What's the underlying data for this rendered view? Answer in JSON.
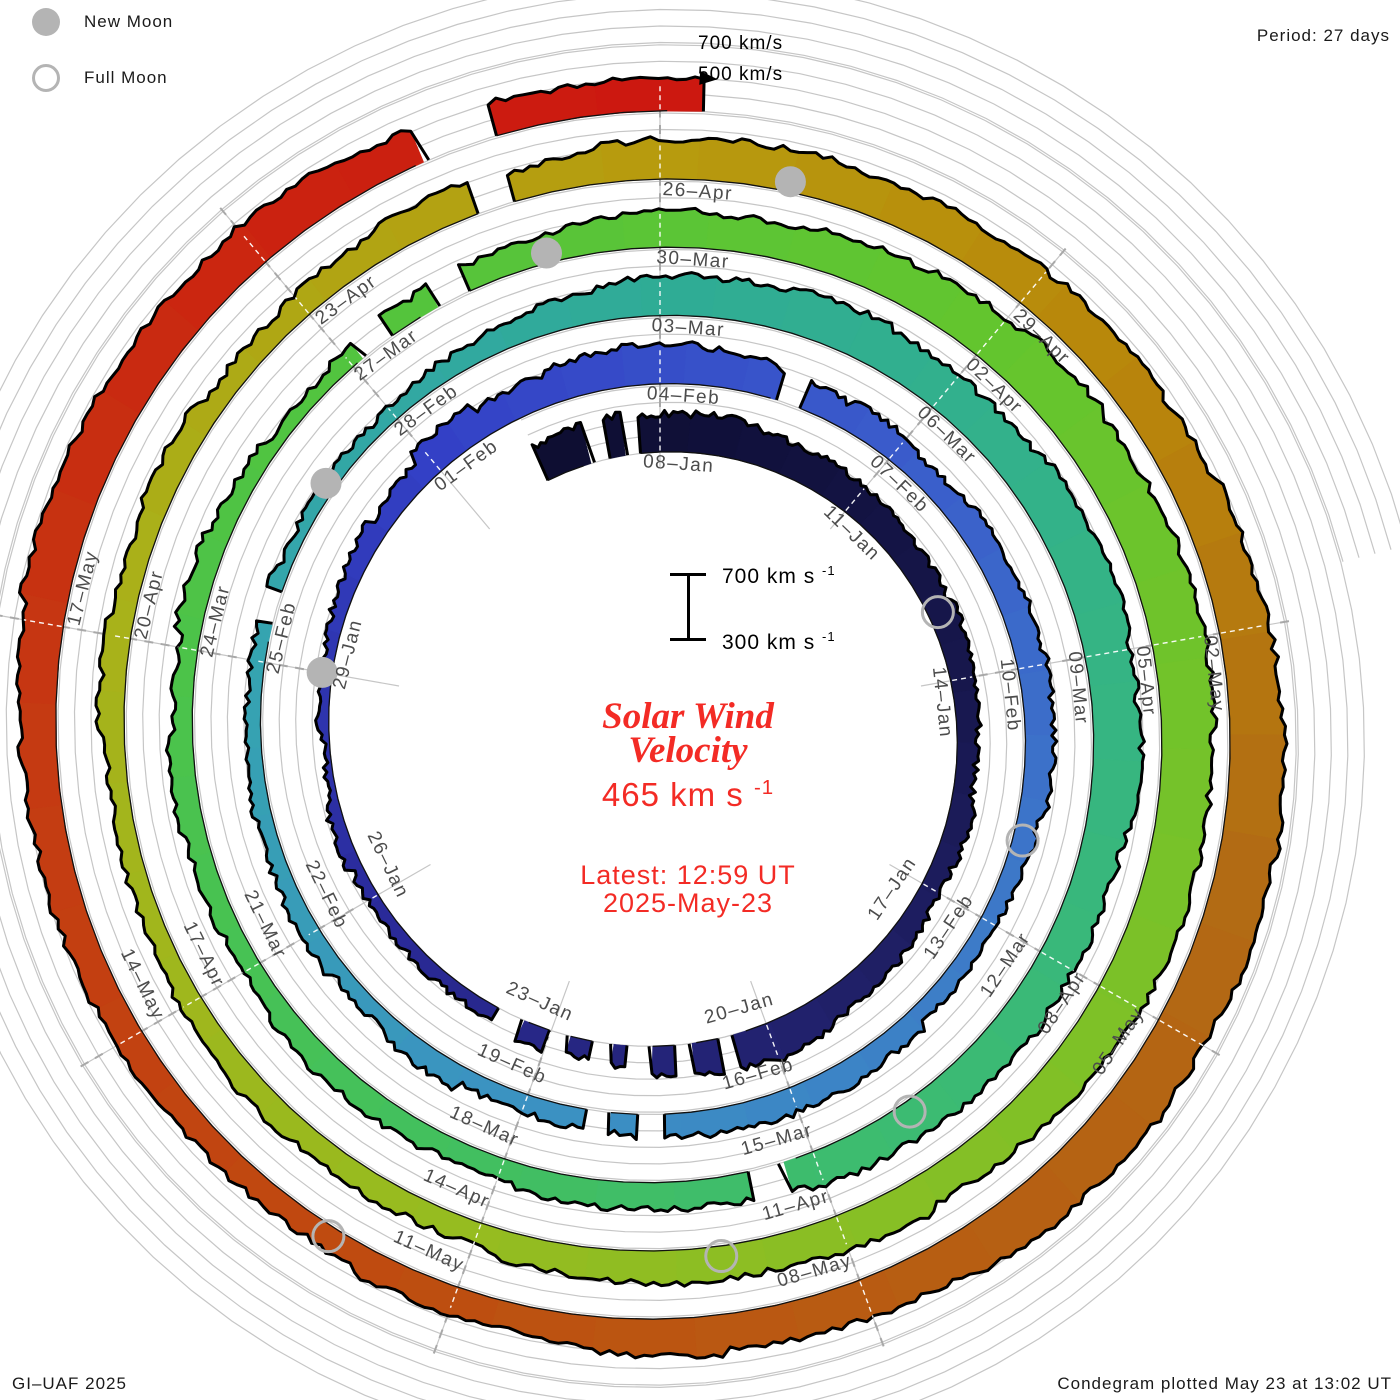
{
  "legend": {
    "new_moon": "New Moon",
    "full_moon": "Full Moon"
  },
  "header": {
    "period_label": "Period: 27 days"
  },
  "outer_scale": {
    "line_700": "700 km/s",
    "line_500": "500 km/s"
  },
  "center": {
    "scale_top_text": "700 km s",
    "scale_top_sup": "-1",
    "scale_bottom_text": "300 km s",
    "scale_bottom_sup": "-1",
    "title_line1": "Solar Wind",
    "title_line2": "Velocity",
    "value": "465 km s",
    "value_sup": "-1",
    "latest_line1": "Latest: 12:59 UT",
    "latest_line2": "2025-May-23"
  },
  "footer": {
    "left": "GI–UAF 2025",
    "right": "Condegram plotted May 23 at 13:02 UT"
  },
  "chart_data": {
    "type": "area",
    "subtype": "condegram-polar-spiral",
    "title": "Solar Wind Velocity",
    "period_days": 27,
    "angular_direction": "clockwise-from-top",
    "days_reference": "2025-01-08",
    "start_d": -1.8,
    "end_d": 135.3,
    "latest_velocity_kms": 465,
    "radial_axis": {
      "label": "velocity",
      "units": "km/s",
      "min": 300,
      "max": 700,
      "gridlines": [
        300,
        400,
        500,
        600,
        700
      ],
      "grid": true
    },
    "spokes_deg": [
      0,
      40,
      80,
      120,
      160,
      200,
      240,
      280,
      320
    ],
    "date_labels": [
      {
        "d": 0,
        "label": "08–Jan"
      },
      {
        "d": 3,
        "label": "11–Jan"
      },
      {
        "d": 6,
        "label": "14–Jan"
      },
      {
        "d": 9,
        "label": "17–Jan"
      },
      {
        "d": 12,
        "label": "20–Jan"
      },
      {
        "d": 15,
        "label": "23–Jan"
      },
      {
        "d": 18,
        "label": "26–Jan"
      },
      {
        "d": 21,
        "label": "29–Jan"
      },
      {
        "d": 24,
        "label": "01–Feb"
      },
      {
        "d": 27,
        "label": "04–Feb"
      },
      {
        "d": 30,
        "label": "07–Feb"
      },
      {
        "d": 33,
        "label": "10–Feb"
      },
      {
        "d": 36,
        "label": "13–Feb"
      },
      {
        "d": 39,
        "label": "16–Feb"
      },
      {
        "d": 42,
        "label": "19–Feb"
      },
      {
        "d": 45,
        "label": "22–Feb"
      },
      {
        "d": 48,
        "label": "25–Feb"
      },
      {
        "d": 51,
        "label": "28–Feb"
      },
      {
        "d": 54,
        "label": "03–Mar"
      },
      {
        "d": 57,
        "label": "06–Mar"
      },
      {
        "d": 60,
        "label": "09–Mar"
      },
      {
        "d": 63,
        "label": "12–Mar"
      },
      {
        "d": 66,
        "label": "15–Mar"
      },
      {
        "d": 69,
        "label": "18–Mar"
      },
      {
        "d": 72,
        "label": "21–Mar"
      },
      {
        "d": 75,
        "label": "24–Mar"
      },
      {
        "d": 78,
        "label": "27–Mar"
      },
      {
        "d": 81,
        "label": "30–Mar"
      },
      {
        "d": 84,
        "label": "02–Apr"
      },
      {
        "d": 87,
        "label": "05–Apr"
      },
      {
        "d": 90,
        "label": "08–Apr"
      },
      {
        "d": 93,
        "label": "11–Apr"
      },
      {
        "d": 96,
        "label": "14–Apr"
      },
      {
        "d": 99,
        "label": "17–Apr"
      },
      {
        "d": 102,
        "label": "20–Apr"
      },
      {
        "d": 105,
        "label": "23–Apr"
      },
      {
        "d": 108,
        "label": "26–Apr"
      },
      {
        "d": 111,
        "label": "29–Apr"
      },
      {
        "d": 114,
        "label": "02–May"
      },
      {
        "d": 117,
        "label": "05–May"
      },
      {
        "d": 120,
        "label": "08–May"
      },
      {
        "d": 123,
        "label": "11–May"
      },
      {
        "d": 126,
        "label": "14–May"
      },
      {
        "d": 129,
        "label": "17–May"
      }
    ],
    "velocity_samples_d_kms": [
      [
        -2,
        520
      ],
      [
        0,
        540
      ],
      [
        3,
        500
      ],
      [
        6,
        450
      ],
      [
        9,
        430
      ],
      [
        12,
        520
      ],
      [
        15,
        420
      ],
      [
        18,
        380
      ],
      [
        21,
        340
      ],
      [
        24,
        480
      ],
      [
        27,
        540
      ],
      [
        30,
        450
      ],
      [
        33,
        470
      ],
      [
        36,
        420
      ],
      [
        39,
        440
      ],
      [
        42,
        430
      ],
      [
        45,
        390
      ],
      [
        48,
        370
      ],
      [
        51,
        400
      ],
      [
        54,
        520
      ],
      [
        57,
        560
      ],
      [
        60,
        590
      ],
      [
        63,
        550
      ],
      [
        66,
        500
      ],
      [
        69,
        460
      ],
      [
        72,
        440
      ],
      [
        75,
        440
      ],
      [
        78,
        390
      ],
      [
        81,
        520
      ],
      [
        84,
        580
      ],
      [
        87,
        620
      ],
      [
        90,
        590
      ],
      [
        93,
        500
      ],
      [
        96,
        460
      ],
      [
        99,
        440
      ],
      [
        102,
        430
      ],
      [
        105,
        450
      ],
      [
        108,
        530
      ],
      [
        111,
        560
      ],
      [
        114,
        600
      ],
      [
        117,
        640
      ],
      [
        120,
        560
      ],
      [
        123,
        450
      ],
      [
        126,
        470
      ],
      [
        129,
        560
      ],
      [
        132,
        540
      ],
      [
        135,
        470
      ],
      [
        135.54,
        465
      ]
    ],
    "colormap_d_hex": [
      [
        -2,
        "#0d0d30"
      ],
      [
        6,
        "#17174d"
      ],
      [
        12,
        "#22226e"
      ],
      [
        18,
        "#2b2b9c"
      ],
      [
        24,
        "#3340c6"
      ],
      [
        30,
        "#3a5ccb"
      ],
      [
        36,
        "#3d7ac8"
      ],
      [
        42,
        "#3b92c2"
      ],
      [
        48,
        "#35a4b0"
      ],
      [
        54,
        "#2fac96"
      ],
      [
        60,
        "#35b484"
      ],
      [
        66,
        "#3dbc6e"
      ],
      [
        72,
        "#47c254"
      ],
      [
        78,
        "#52c43e"
      ],
      [
        84,
        "#63c52e"
      ],
      [
        90,
        "#7cc128"
      ],
      [
        96,
        "#95bc20"
      ],
      [
        102,
        "#a8b21a"
      ],
      [
        108,
        "#b79b0e"
      ],
      [
        112,
        "#b8860b"
      ],
      [
        116,
        "#b26a14"
      ],
      [
        120,
        "#b85c12"
      ],
      [
        124,
        "#bf4a10"
      ],
      [
        128,
        "#c53a12"
      ],
      [
        132,
        "#cb2410"
      ],
      [
        136,
        "#cc1410"
      ]
    ],
    "data_gaps_d": [
      [
        -0.9,
        0.25
      ],
      [
        -0.4,
        0.2
      ],
      [
        12.6,
        0.2
      ],
      [
        13.2,
        0.2
      ],
      [
        13.8,
        0.3
      ],
      [
        14.3,
        0.25
      ],
      [
        14.9,
        0.25
      ],
      [
        15.6,
        0.35
      ],
      [
        28.6,
        0.3
      ],
      [
        40.6,
        0.3
      ],
      [
        41.2,
        0.25
      ],
      [
        48.6,
        0.35
      ],
      [
        66.5,
        0.3
      ],
      [
        78.3,
        0.3
      ],
      [
        79.1,
        0.3
      ],
      [
        106.7,
        0.3
      ],
      [
        133.6,
        0.5
      ]
    ],
    "moons": {
      "new": [
        {
          "date": "29–Jan",
          "d": 21
        },
        {
          "date": "27–Feb",
          "d": 50
        },
        {
          "date": "29–Mar",
          "d": 80
        },
        {
          "date": "27–Apr",
          "d": 109
        }
      ],
      "full": [
        {
          "date": "13–Jan",
          "d": 5
        },
        {
          "date": "12–Feb",
          "d": 35
        },
        {
          "date": "14–Mar",
          "d": 65
        },
        {
          "date": "12–Apr",
          "d": 94
        },
        {
          "date": "12–May",
          "d": 124
        }
      ]
    },
    "colors": {
      "grid": "#c6c6c6",
      "tick": "#a8a8a8",
      "crest": "#000000",
      "label_text": "#4c4c4c",
      "moon_gray": "#b4b4b4",
      "accent_red": "#f32b25"
    }
  }
}
